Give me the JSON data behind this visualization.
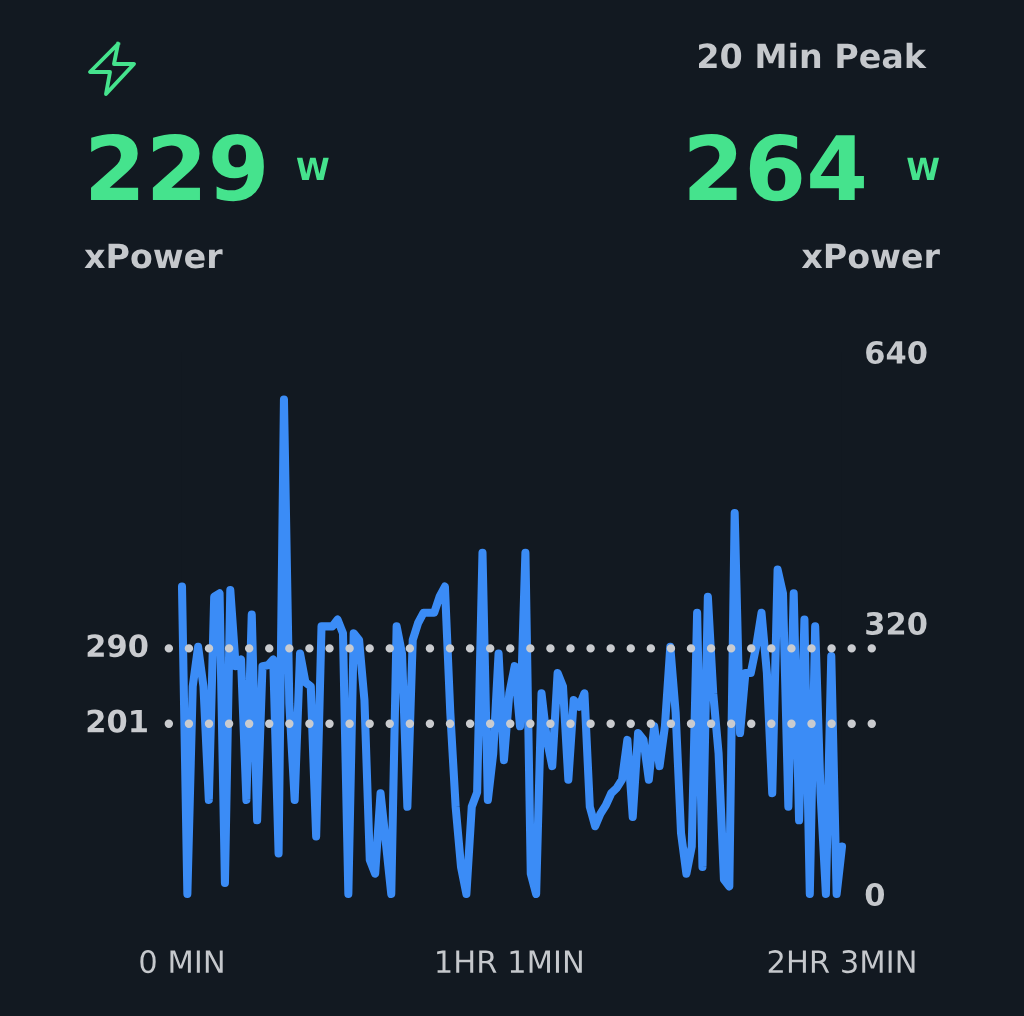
{
  "chart_data": {
    "type": "line",
    "annotations": [
      "229",
      "W",
      "xPower",
      "20 Min Peak",
      "264",
      "W",
      "xPower"
    ],
    "categories": [
      "0 MIN",
      null,
      null,
      null,
      null,
      null,
      null,
      null,
      null,
      null,
      null,
      null,
      null,
      null,
      null,
      null,
      null,
      null,
      null,
      null,
      null,
      null,
      null,
      null,
      null,
      null,
      null,
      null,
      null,
      null,
      null,
      null,
      null,
      null,
      null,
      null,
      null,
      null,
      null,
      null,
      null,
      null,
      null,
      null,
      null,
      null,
      null,
      null,
      null,
      null,
      null,
      null,
      null,
      null,
      null,
      null,
      null,
      null,
      null,
      null,
      null,
      "1HR 1MIN",
      null,
      null,
      null,
      null,
      null,
      null,
      null,
      null,
      null,
      null,
      null,
      null,
      null,
      null,
      null,
      null,
      null,
      null,
      null,
      null,
      null,
      null,
      null,
      null,
      null,
      null,
      null,
      null,
      null,
      null,
      null,
      null,
      null,
      null,
      null,
      null,
      null,
      null,
      null,
      null,
      null,
      null,
      null,
      null,
      null,
      null,
      null,
      null,
      null,
      null,
      null,
      null,
      null,
      null,
      null,
      null,
      null,
      null,
      null,
      null,
      null,
      "2HR 3MIN"
    ],
    "series": [
      {
        "color": "#3b8cf6",
        "values": [
          363,
          0,
          245,
          292,
          245,
          111,
          351,
          355,
          13,
          359,
          269,
          277,
          111,
          330,
          87,
          269,
          270,
          277,
          48,
          584,
          225,
          111,
          284,
          250,
          245,
          68,
          316,
          316,
          316,
          324,
          308,
          0,
          308,
          300,
          229,
          40,
          24,
          119,
          60,
          0,
          316,
          284,
          103,
          300,
          320,
          332,
          332,
          332,
          351,
          363,
          214,
          103,
          32,
          0,
          103,
          120,
          403,
          111,
          166,
          284,
          158,
          237,
          269,
          198,
          403,
          24,
          0,
          237,
          182,
          151,
          261,
          245,
          135,
          229,
          221,
          237,
          103,
          80,
          95,
          105,
          119,
          125,
          135,
          182,
          91,
          190,
          182,
          135,
          198,
          151,
          198,
          292,
          214,
          72,
          24,
          56,
          332,
          32,
          351,
          237,
          166,
          17,
          9,
          450,
          190,
          261,
          261,
          292,
          332,
          261,
          119,
          383,
          355,
          103,
          355,
          87,
          324,
          0,
          316,
          119,
          0,
          281,
          0,
          56
        ]
      }
    ],
    "ylim": [
      0,
      640
    ],
    "yticks": [
      0,
      320,
      640
    ],
    "ref_lines": [
      {
        "axis": "y",
        "value": 290,
        "label": "290",
        "color": "#c9cbcf",
        "line_style": "dotted"
      },
      {
        "axis": "y",
        "value": 201,
        "label": "201",
        "color": "#c9cbcf",
        "line_style": "dotted"
      }
    ],
    "line_style": "solid",
    "marker": "none"
  }
}
